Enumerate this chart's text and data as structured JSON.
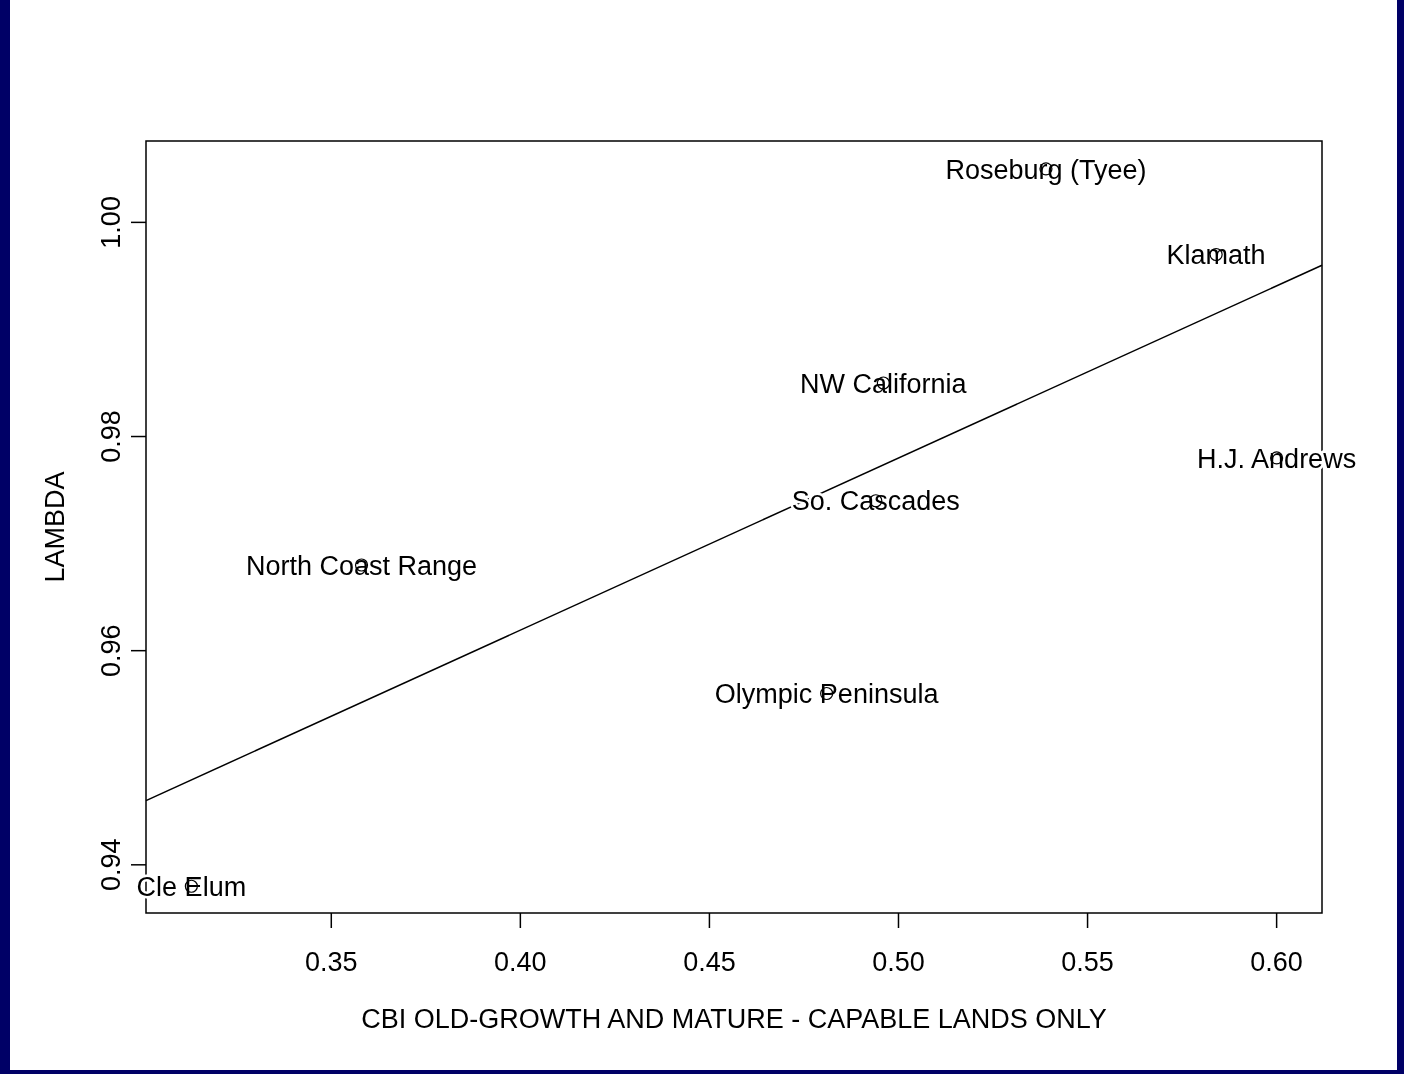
{
  "chart_data": {
    "type": "scatter",
    "xlabel": "CBI OLD-GROWTH AND MATURE - CAPABLE LANDS ONLY",
    "ylabel": "LAMBDA",
    "xlim": [
      0.301,
      0.612
    ],
    "ylim": [
      0.9355,
      1.0076
    ],
    "xticks": [
      0.35,
      {
        "value": 0.4,
        "label": "0.40"
      },
      0.45,
      {
        "value": 0.5,
        "label": "0.50"
      },
      0.55,
      {
        "value": 0.6,
        "label": "0.60"
      }
    ],
    "yticks": [
      0.94,
      0.96,
      0.98,
      {
        "value": 1.0,
        "label": "1.00"
      }
    ],
    "series": [
      {
        "marker": "circle",
        "color": "#000000",
        "x": [
          0.539,
          0.584,
          0.496,
          0.6,
          0.494,
          0.358,
          0.481,
          0.313
        ],
        "values": [
          1.005,
          0.997,
          0.985,
          0.978,
          0.974,
          0.968,
          0.956,
          0.938
        ]
      },
      {
        "type": "line",
        "color": "#000000",
        "x": [
          0.301,
          0.612
        ],
        "values": [
          0.946,
          0.996
        ]
      }
    ],
    "annotations": [
      {
        "text": "Roseburg (Tyee)",
        "x": 0.539,
        "y": 1.005
      },
      {
        "text": "Klamath",
        "x": 0.584,
        "y": 0.997
      },
      {
        "text": "NW California",
        "x": 0.496,
        "y": 0.985
      },
      {
        "text": "H.J. Andrews",
        "x": 0.6,
        "y": 0.978
      },
      {
        "text": "So. Cascades",
        "x": 0.494,
        "y": 0.974
      },
      {
        "text": "North Coast Range",
        "x": 0.358,
        "y": 0.968
      },
      {
        "text": "Olympic Peninsula",
        "x": 0.481,
        "y": 0.956
      },
      {
        "text": "Cle Elum",
        "x": 0.313,
        "y": 0.938
      }
    ]
  }
}
